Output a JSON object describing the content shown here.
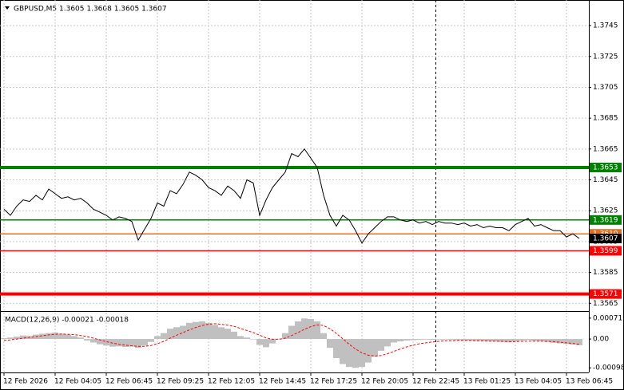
{
  "chart_data": {
    "type": "line",
    "title": "GBPUSD,M5  1.3605 1.3608 1.3605 1.3607",
    "categories": [
      "12 Feb 2026",
      null,
      null,
      null,
      null,
      null,
      null,
      null,
      "12 Feb 04:05",
      null,
      null,
      null,
      null,
      null,
      null,
      null,
      "12 Feb 06:45",
      null,
      null,
      null,
      null,
      null,
      null,
      null,
      "12 Feb 09:25",
      null,
      null,
      null,
      null,
      null,
      null,
      null,
      "12 Feb 12:05",
      null,
      null,
      null,
      null,
      null,
      null,
      null,
      "12 Feb 14:45",
      null,
      null,
      null,
      null,
      null,
      null,
      null,
      "12 Feb 17:25",
      null,
      null,
      null,
      null,
      null,
      null,
      null,
      "12 Feb 20:05",
      null,
      null,
      null,
      null,
      null,
      null,
      null,
      "12 Feb 22:45",
      null,
      null,
      null,
      null,
      null,
      null,
      null,
      "13 Feb 01:25",
      null,
      null,
      null,
      null,
      null,
      null,
      null,
      "13 Feb 04:05",
      null,
      null,
      null,
      null,
      null,
      null,
      null,
      "13 Feb 06:45",
      null,
      null
    ],
    "values": [
      1.3626,
      1.3622,
      1.3628,
      1.3632,
      1.3631,
      1.3635,
      1.3632,
      1.3639,
      1.3636,
      1.3633,
      1.3634,
      1.3632,
      1.3633,
      1.363,
      1.3626,
      1.3624,
      1.3622,
      1.3619,
      1.3621,
      1.362,
      1.3618,
      1.3606,
      1.3613,
      1.362,
      1.363,
      1.3628,
      1.3638,
      1.3636,
      1.3642,
      1.365,
      1.3648,
      1.3645,
      1.364,
      1.3638,
      1.3635,
      1.3641,
      1.3638,
      1.3633,
      1.3645,
      1.3643,
      1.3622,
      1.3632,
      1.364,
      1.3645,
      1.365,
      1.3662,
      1.366,
      1.3665,
      1.3659,
      1.3653,
      1.3635,
      1.3622,
      1.3615,
      1.3622,
      1.3619,
      1.3612,
      1.3604,
      1.361,
      1.3614,
      1.3618,
      1.3621,
      1.3621,
      1.3619,
      1.3618,
      1.3619,
      1.3617,
      1.3618,
      1.3616,
      1.3618,
      1.3617,
      1.3617,
      1.3616,
      1.3617,
      1.3615,
      1.3616,
      1.3614,
      1.3615,
      1.3614,
      1.3614,
      1.3612,
      1.3616,
      1.3618,
      1.362,
      1.3615,
      1.3616,
      1.3614,
      1.3612,
      1.3612,
      1.3608,
      1.361,
      1.3607
    ],
    "color": "#000000",
    "ylim": [
      1.3561,
      1.3759
    ],
    "yticks": [
      1.3565,
      1.3585,
      1.3605,
      1.3625,
      1.3645,
      1.3665,
      1.3685,
      1.3705,
      1.3725,
      1.3745
    ],
    "grid": true,
    "levels": [
      {
        "value": 1.3653,
        "color": "#008000",
        "thick": true
      },
      {
        "value": 1.3619,
        "color": "#008000",
        "thick": false
      },
      {
        "value": 1.361,
        "label": "1.3610",
        "color": "#e07020",
        "thick": false
      },
      {
        "value": 1.3599,
        "color": "#ff0000",
        "thick": false
      },
      {
        "value": 1.3571,
        "color": "#ff0000",
        "thick": true
      }
    ],
    "current_price": 1.3607,
    "macd": {
      "label": "MACD(12,26,9) -0.00021 -0.00018",
      "histogram_color": "#c0c0c0",
      "signal_color": "#ff0000",
      "ylim": [
        -0.00111,
        0.00087
      ],
      "yticks": [
        -0.00098,
        {
          "value": 0,
          "label": "0.00"
        },
        0.00071
      ],
      "histogram": [
        3e-05,
        5e-05,
        8e-05,
        0.00012,
        0.0001,
        0.00015,
        0.00018,
        0.0002,
        0.00022,
        0.00018,
        0.00015,
        0.0001,
        5e-05,
        -5e-05,
        -0.00012,
        -0.00018,
        -0.00022,
        -0.00026,
        -0.00025,
        -0.00027,
        -0.00026,
        -0.0003,
        -0.00022,
        -0.0001,
        0.0001,
        0.0002,
        0.00035,
        0.0004,
        0.00045,
        0.00055,
        0.00058,
        0.0006,
        0.00055,
        0.00048,
        0.0004,
        0.00035,
        0.00025,
        0.0001,
        5e-05,
        0,
        -0.0002,
        -0.00028,
        -0.00015,
        0,
        0.0002,
        0.00045,
        0.0006,
        0.0007,
        0.00068,
        0.0006,
        0.0002,
        -0.0003,
        -0.00065,
        -0.00085,
        -0.00095,
        -0.00098,
        -0.00095,
        -0.0008,
        -0.0006,
        -0.0004,
        -0.00025,
        -0.00012,
        -8e-05,
        -5e-05,
        -4e-05,
        -3e-05,
        -2e-05,
        -3e-05,
        -2e-05,
        -2e-05,
        -3e-05,
        -4e-05,
        -5e-05,
        -6e-05,
        -6e-05,
        -7e-05,
        -8e-05,
        -9e-05,
        -0.0001,
        -0.00011,
        -8e-05,
        -5e-05,
        -3e-05,
        -6e-05,
        -8e-05,
        -0.0001,
        -0.00013,
        -0.00015,
        -0.00017,
        -0.00019,
        -0.00021
      ],
      "signal": [
        -5e-05,
        -3e-05,
        0,
        3e-05,
        6e-05,
        8e-05,
        0.00011,
        0.00014,
        0.00016,
        0.00017,
        0.00016,
        0.00015,
        0.00012,
        8e-05,
        3e-05,
        -3e-05,
        -9e-05,
        -0.00014,
        -0.00018,
        -0.00021,
        -0.00023,
        -0.00025,
        -0.00025,
        -0.00022,
        -0.00016,
        -8e-05,
        3e-05,
        0.00013,
        0.00022,
        0.00031,
        0.00039,
        0.00046,
        0.0005,
        0.00052,
        0.0005,
        0.00047,
        0.00043,
        0.00036,
        0.00029,
        0.00022,
        0.00013,
        4e-05,
        -1e-05,
        -1e-05,
        3e-05,
        0.00012,
        0.00022,
        0.00033,
        0.00042,
        0.00048,
        0.00046,
        0.00035,
        0.00019,
        1e-05,
        -0.00018,
        -0.00034,
        -0.00047,
        -0.00055,
        -0.00058,
        -0.00056,
        -0.0005,
        -0.00042,
        -0.00034,
        -0.00027,
        -0.00021,
        -0.00016,
        -0.00013,
        -0.0001,
        -8e-05,
        -6e-05,
        -6e-05,
        -5e-05,
        -5e-05,
        -5e-05,
        -6e-05,
        -6e-05,
        -7e-05,
        -7e-05,
        -8e-05,
        -9e-05,
        -9e-05,
        -8e-05,
        -7e-05,
        -7e-05,
        -7e-05,
        -8e-05,
        -9e-05,
        -0.00011,
        -0.00013,
        -0.00015,
        -0.00018
      ]
    }
  }
}
